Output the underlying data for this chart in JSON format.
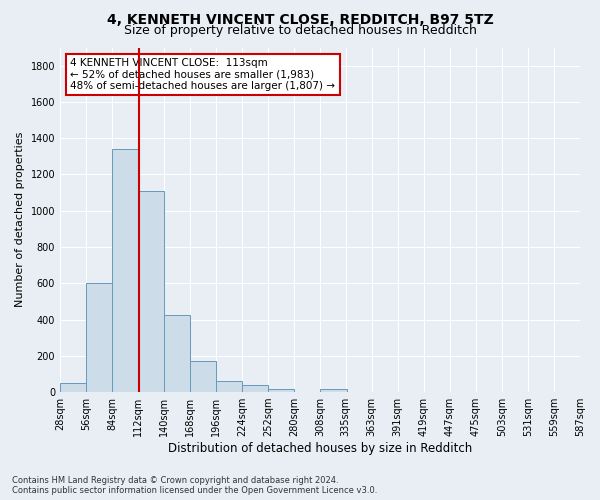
{
  "title": "4, KENNETH VINCENT CLOSE, REDDITCH, B97 5TZ",
  "subtitle": "Size of property relative to detached houses in Redditch",
  "xlabel": "Distribution of detached houses by size in Redditch",
  "ylabel": "Number of detached properties",
  "footnote": "Contains HM Land Registry data © Crown copyright and database right 2024.\nContains public sector information licensed under the Open Government Licence v3.0.",
  "bin_edges": [
    28,
    56,
    84,
    112,
    140,
    168,
    196,
    224,
    252,
    280,
    308,
    335,
    363,
    391,
    419,
    447,
    475,
    503,
    531,
    559,
    587
  ],
  "bar_heights": [
    50,
    600,
    1340,
    1110,
    425,
    170,
    60,
    40,
    15,
    0,
    15,
    0,
    0,
    0,
    0,
    0,
    0,
    0,
    0,
    0
  ],
  "bar_color": "#ccdce8",
  "bar_edge_color": "#6699bb",
  "property_size": 113,
  "vline_color": "#cc0000",
  "annotation_line1": "4 KENNETH VINCENT CLOSE:  113sqm",
  "annotation_line2": "← 52% of detached houses are smaller (1,983)",
  "annotation_line3": "48% of semi-detached houses are larger (1,807) →",
  "annotation_box_color": "#cc0000",
  "ylim": [
    0,
    1900
  ],
  "yticks": [
    0,
    200,
    400,
    600,
    800,
    1000,
    1200,
    1400,
    1600,
    1800
  ],
  "background_color": "#e8eef4",
  "axes_background": "#e8eef4",
  "grid_color": "#ffffff",
  "title_fontsize": 10,
  "subtitle_fontsize": 9,
  "tick_label_fontsize": 7,
  "ylabel_fontsize": 8,
  "xlabel_fontsize": 8.5,
  "footnote_fontsize": 6
}
